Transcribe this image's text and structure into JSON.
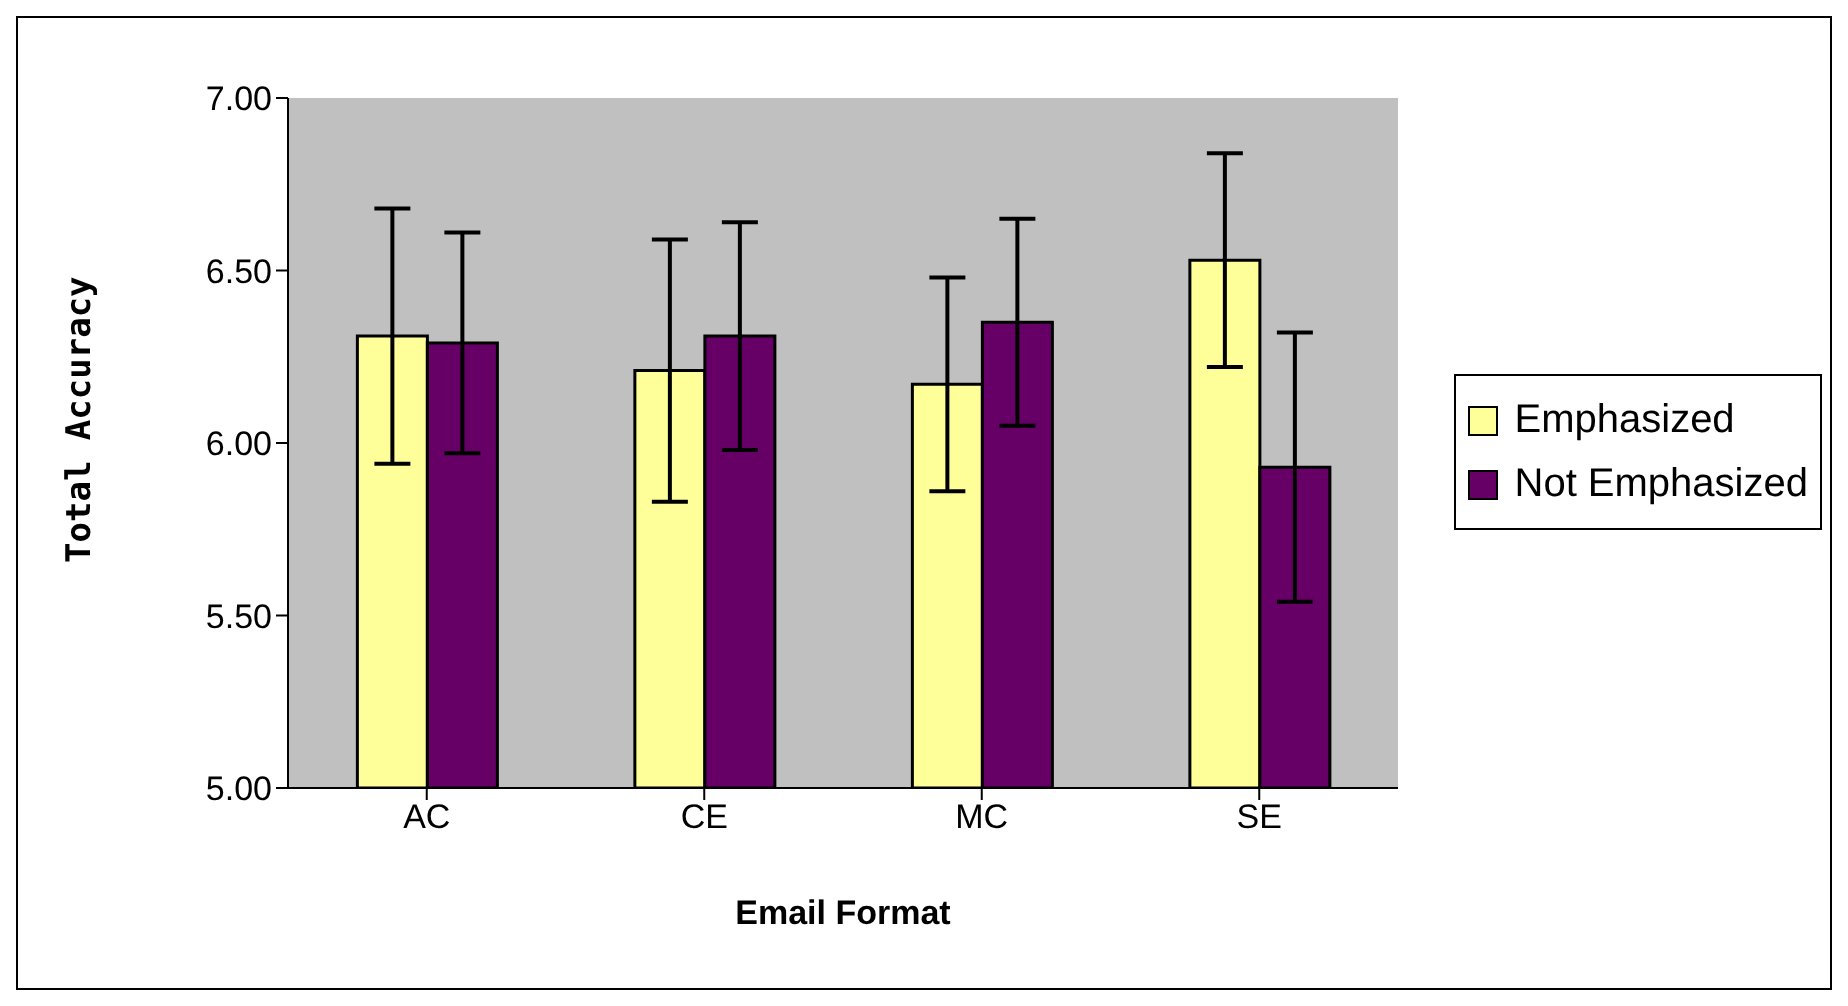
{
  "chart_data": {
    "type": "bar",
    "xlabel": "Email Format",
    "ylabel": "Total Accuracy",
    "categories": [
      "AC",
      "CE",
      "MC",
      "SE"
    ],
    "series": [
      {
        "name": "Emphasized",
        "color": "#ffff99",
        "values": [
          6.31,
          6.21,
          6.17,
          6.53
        ],
        "errors": [
          0.37,
          0.38,
          0.31,
          0.31
        ]
      },
      {
        "name": "Not Emphasized",
        "color": "#660066",
        "values": [
          6.29,
          6.31,
          6.35,
          5.93
        ],
        "errors": [
          0.32,
          0.33,
          0.3,
          0.39
        ]
      }
    ],
    "ylim": [
      5,
      7
    ],
    "yticks": [
      {
        "value": 5,
        "label": "5.00"
      },
      {
        "value": 5.5,
        "label": "5.50"
      },
      {
        "value": 6,
        "label": "6.00"
      },
      {
        "value": 6.5,
        "label": "6.50"
      },
      {
        "value": 7,
        "label": "7.00"
      }
    ],
    "grid": false,
    "legend": "right"
  }
}
